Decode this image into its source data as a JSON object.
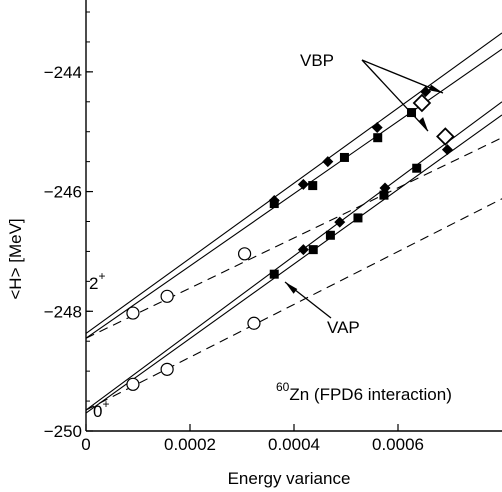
{
  "chart_data": {
    "type": "scatter",
    "xlabel": "Energy variance",
    "ylabel": "<H>  [MeV]",
    "xlim": [
      0,
      0.0008
    ],
    "ylim": [
      -250,
      -243
    ],
    "xticks": [
      {
        "v": 0,
        "label": "0"
      },
      {
        "v": 0.0002,
        "label": "0.0002"
      },
      {
        "v": 0.0004,
        "label": "0.0004"
      },
      {
        "v": 0.0006,
        "label": "0.0006"
      }
    ],
    "yticks": [
      {
        "v": -244,
        "label": "−244"
      },
      {
        "v": -246,
        "label": "−246"
      },
      {
        "v": -248,
        "label": "−248"
      },
      {
        "v": -250,
        "label": "−250"
      }
    ],
    "series": [
      {
        "marker": "diamond-filled",
        "points": [
          [
            0.000362,
            -246.15
          ],
          [
            0.000418,
            -245.88
          ],
          [
            0.000465,
            -245.5
          ],
          [
            0.00056,
            -244.93
          ],
          [
            0.000653,
            -244.33
          ]
        ]
      },
      {
        "marker": "square-filled",
        "points": [
          [
            0.000362,
            -246.2
          ],
          [
            0.000436,
            -245.9
          ],
          [
            0.000497,
            -245.43
          ],
          [
            0.000561,
            -245.1
          ],
          [
            0.000626,
            -244.68
          ]
        ]
      },
      {
        "marker": "diamond-open",
        "points": [
          [
            0.000646,
            -244.52
          ]
        ]
      },
      {
        "marker": "circle-open",
        "points": [
          [
            9.03e-05,
            -248.03
          ],
          [
            0.000156,
            -247.75
          ],
          [
            0.000305,
            -247.04
          ]
        ]
      },
      {
        "marker": "diamond-filled",
        "points": [
          [
            0.000418,
            -246.97
          ],
          [
            0.000488,
            -246.51
          ],
          [
            0.000575,
            -245.94
          ],
          [
            0.000695,
            -245.3
          ]
        ]
      },
      {
        "marker": "square-filled",
        "points": [
          [
            0.000362,
            -247.38
          ],
          [
            0.000437,
            -246.97
          ],
          [
            0.00047,
            -246.73
          ],
          [
            0.000523,
            -246.44
          ],
          [
            0.000573,
            -246.06
          ],
          [
            0.000636,
            -245.61
          ]
        ]
      },
      {
        "marker": "diamond-open",
        "points": [
          [
            0.000691,
            -245.08
          ]
        ]
      },
      {
        "marker": "circle-open",
        "points": [
          [
            9.03e-05,
            -249.22
          ],
          [
            0.000156,
            -248.97
          ],
          [
            0.000323,
            -248.2
          ]
        ]
      }
    ],
    "lines": [
      {
        "style": "solid",
        "p1": [
          0,
          -248.37
        ],
        "p2": [
          0.0008,
          -243.35
        ]
      },
      {
        "style": "solid",
        "p1": [
          0,
          -248.45
        ],
        "p2": [
          0.0008,
          -243.62
        ]
      },
      {
        "style": "solid",
        "p1": [
          0,
          -249.65
        ],
        "p2": [
          0.0008,
          -244.5
        ]
      },
      {
        "style": "solid",
        "p1": [
          0,
          -249.7
        ],
        "p2": [
          0.0008,
          -244.72
        ]
      },
      {
        "style": "dashed",
        "p1": [
          0,
          -248.45
        ],
        "p2": [
          0.0008,
          -245.1
        ]
      },
      {
        "style": "dashed",
        "p1": [
          0,
          -249.65
        ],
        "p2": [
          0.0008,
          -246.12
        ]
      }
    ],
    "annotations": {
      "vbp": "VBP",
      "vap": "VAP",
      "spin2": {
        "base": "2",
        "sup": "+"
      },
      "spin0": {
        "base": "0",
        "sup": "+"
      },
      "nucleus": {
        "sup": "60",
        "rest": "Zn  (FPD6 interaction)"
      }
    }
  }
}
